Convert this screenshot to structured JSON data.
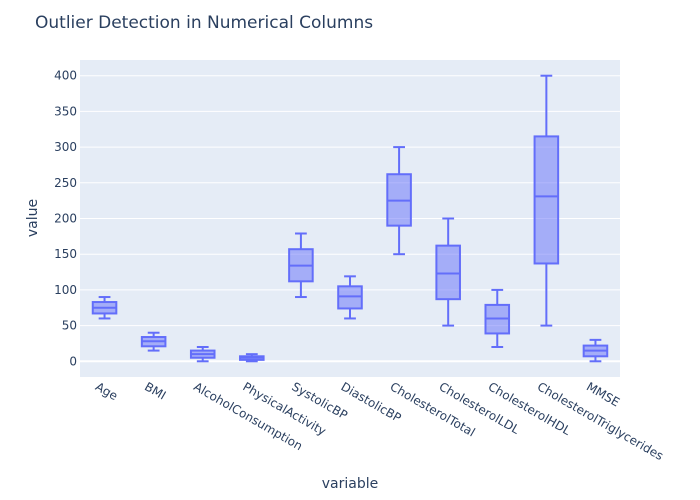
{
  "chart_data": {
    "type": "box",
    "title": "Outlier Detection in Numerical Columns",
    "xlabel": "variable",
    "ylabel": "value",
    "ylim": [
      -22,
      422
    ],
    "yticks": [
      0,
      50,
      100,
      150,
      200,
      250,
      300,
      350,
      400
    ],
    "grid": true,
    "categories": [
      "Age",
      "BMI",
      "AlcoholConsumption",
      "PhysicalActivity",
      "SystolicBP",
      "DiastolicBP",
      "CholesterolTotal",
      "CholesterolLDL",
      "CholesterolHDL",
      "CholesterolTriglycerides",
      "MMSE"
    ],
    "boxes": [
      {
        "min": 60,
        "q1": 67,
        "median": 75,
        "q3": 83,
        "max": 90
      },
      {
        "min": 15,
        "q1": 21,
        "median": 28,
        "q3": 34,
        "max": 40
      },
      {
        "min": 0,
        "q1": 5,
        "median": 10,
        "q3": 15,
        "max": 20
      },
      {
        "min": 0,
        "q1": 2,
        "median": 5,
        "q3": 7,
        "max": 10
      },
      {
        "min": 90,
        "q1": 112,
        "median": 134,
        "q3": 157,
        "max": 179
      },
      {
        "min": 60,
        "q1": 74,
        "median": 91,
        "q3": 105,
        "max": 119
      },
      {
        "min": 150,
        "q1": 190,
        "median": 225,
        "q3": 262,
        "max": 300
      },
      {
        "min": 50,
        "q1": 87,
        "median": 123,
        "q3": 162,
        "max": 200
      },
      {
        "min": 20,
        "q1": 39,
        "median": 60,
        "q3": 79,
        "max": 100
      },
      {
        "min": 50,
        "q1": 137,
        "median": 231,
        "q3": 315,
        "max": 400
      },
      {
        "min": 0,
        "q1": 7,
        "median": 15,
        "q3": 22,
        "max": 30
      }
    ],
    "colors": {
      "plot_bg": "#e5ecf6",
      "grid": "#ffffff",
      "box_stroke": "#636efa",
      "box_fill": "rgba(99,110,250,0.5)",
      "text": "#2a3f5f"
    }
  }
}
